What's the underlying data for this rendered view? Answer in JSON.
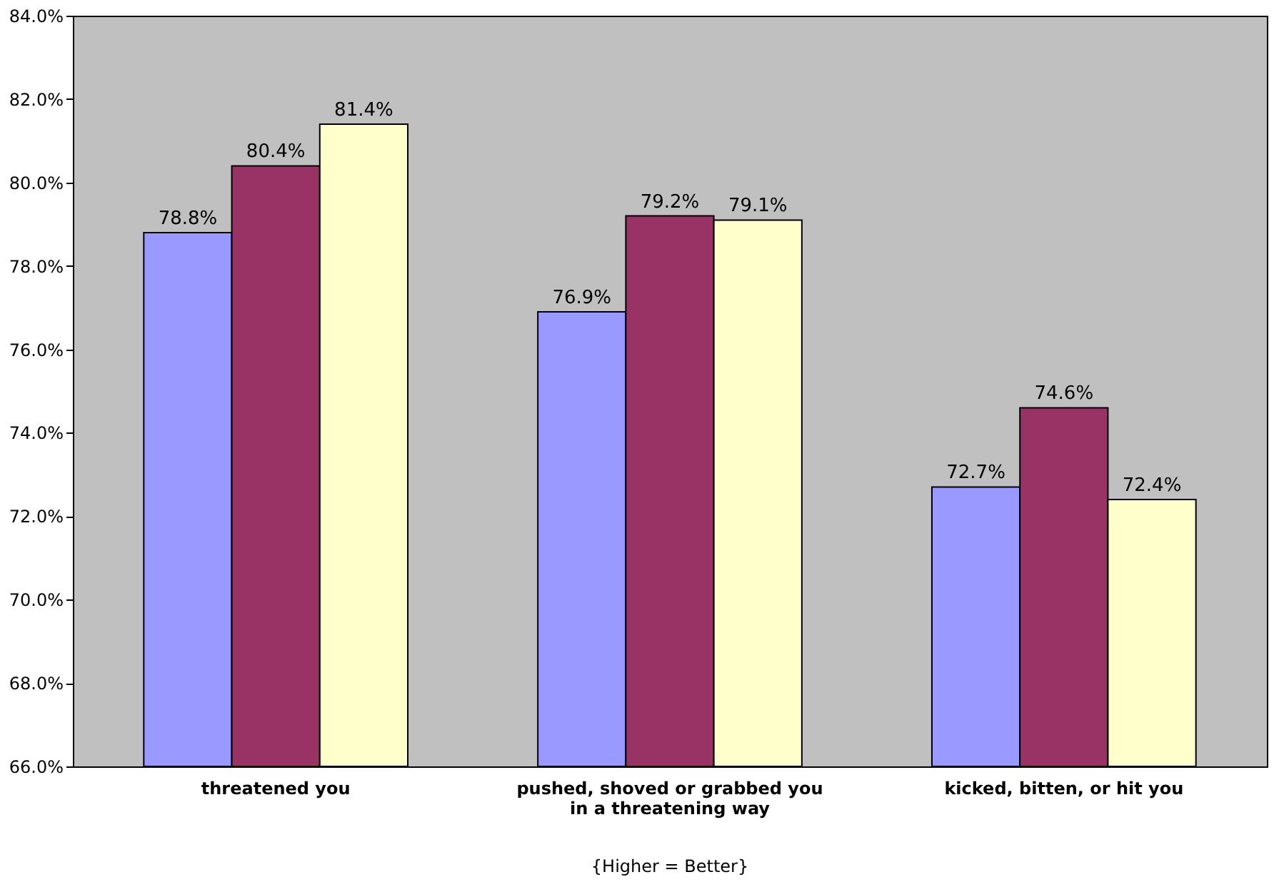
{
  "chart_data": {
    "type": "bar",
    "categories": [
      "threatened you",
      "pushed, shoved or grabbed you\nin a threatening way",
      "kicked, bitten, or hit you"
    ],
    "series": [
      {
        "color": "#9999ff",
        "values": [
          78.8,
          76.9,
          72.7
        ],
        "value_labels": [
          "78.8%",
          "76.9%",
          "72.7%"
        ]
      },
      {
        "color": "#993366",
        "values": [
          80.4,
          79.2,
          74.6
        ],
        "value_labels": [
          "80.4%",
          "79.2%",
          "74.6%"
        ]
      },
      {
        "color": "#ffffcc",
        "values": [
          81.4,
          79.1,
          72.4
        ],
        "value_labels": [
          "81.4%",
          "79.1%",
          "72.4%"
        ]
      }
    ],
    "ylim": [
      66,
      84
    ],
    "yticks": [
      {
        "value": 66,
        "label": "66.0%"
      },
      {
        "value": 68,
        "label": "68.0%"
      },
      {
        "value": 70,
        "label": "70.0%"
      },
      {
        "value": 72,
        "label": "72.0%"
      },
      {
        "value": 74,
        "label": "74.0%"
      },
      {
        "value": 76,
        "label": "76.0%"
      },
      {
        "value": 78,
        "label": "78.0%"
      },
      {
        "value": 80,
        "label": "80.0%"
      },
      {
        "value": 82,
        "label": "82.0%"
      },
      {
        "value": 84,
        "label": "84.0%"
      }
    ],
    "grid": false,
    "legend": false,
    "annotations": [
      "{Higher = Better}"
    ]
  }
}
